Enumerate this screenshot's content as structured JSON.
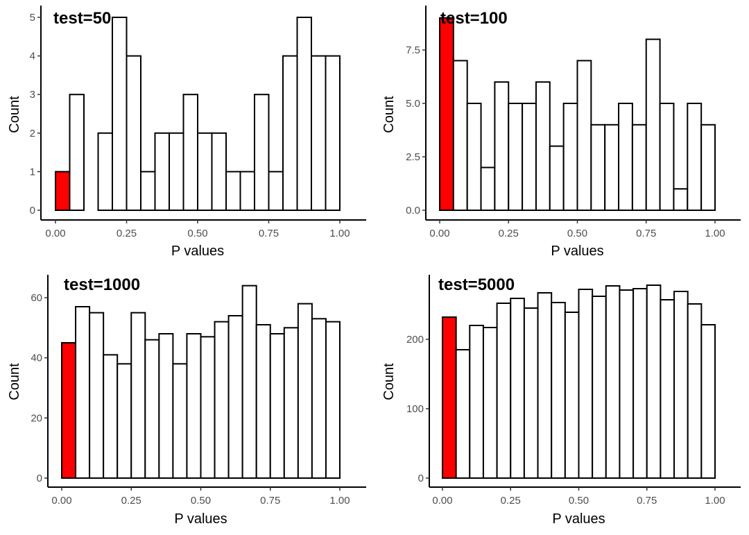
{
  "chart_data": [
    {
      "type": "bar",
      "title": "test=50",
      "xlabel": "P values",
      "ylabel": "Count",
      "bin_width": 0.05,
      "bin_edges_start": 0.0,
      "categories": [
        "0.00-0.05",
        "0.05-0.10",
        "0.10-0.15",
        "0.15-0.20",
        "0.20-0.25",
        "0.25-0.30",
        "0.30-0.35",
        "0.35-0.40",
        "0.40-0.45",
        "0.45-0.50",
        "0.50-0.55",
        "0.55-0.60",
        "0.60-0.65",
        "0.65-0.70",
        "0.70-0.75",
        "0.75-0.80",
        "0.80-0.85",
        "0.85-0.90",
        "0.90-0.95",
        "0.95-1.00"
      ],
      "values": [
        1,
        3,
        0,
        2,
        5,
        4,
        1,
        2,
        2,
        3,
        2,
        2,
        1,
        1,
        3,
        1,
        4,
        5,
        4,
        4
      ],
      "highlight_bins": [
        0
      ],
      "highlight_color": "#ff0000",
      "fill_color": "#ffffff",
      "xlim": [
        0,
        1
      ],
      "ylim": [
        0,
        5
      ],
      "xticks": [
        0,
        0.25,
        0.5,
        0.75,
        1.0
      ],
      "xtick_labels": [
        "0.00",
        "0.25",
        "0.50",
        "0.75",
        "1.00"
      ],
      "yticks": [
        0,
        1,
        2,
        3,
        4,
        5
      ],
      "ytick_labels": [
        "0",
        "1",
        "2",
        "3",
        "4",
        "5"
      ],
      "grid": false,
      "legend": "none"
    },
    {
      "type": "bar",
      "title": "test=100",
      "xlabel": "P values",
      "ylabel": "Count",
      "bin_width": 0.05,
      "bin_edges_start": 0.0,
      "categories": [
        "0.00-0.05",
        "0.05-0.10",
        "0.10-0.15",
        "0.15-0.20",
        "0.20-0.25",
        "0.25-0.30",
        "0.30-0.35",
        "0.35-0.40",
        "0.40-0.45",
        "0.45-0.50",
        "0.50-0.55",
        "0.55-0.60",
        "0.60-0.65",
        "0.65-0.70",
        "0.70-0.75",
        "0.75-0.80",
        "0.80-0.85",
        "0.85-0.90",
        "0.90-0.95",
        "0.95-1.00"
      ],
      "values": [
        9,
        7,
        5,
        2,
        6,
        5,
        5,
        6,
        3,
        5,
        7,
        4,
        4,
        5,
        4,
        8,
        5,
        1,
        5,
        4
      ],
      "highlight_bins": [
        0
      ],
      "highlight_color": "#ff0000",
      "fill_color": "#ffffff",
      "xlim": [
        0,
        1
      ],
      "ylim": [
        0,
        9
      ],
      "xticks": [
        0,
        0.25,
        0.5,
        0.75,
        1.0
      ],
      "xtick_labels": [
        "0.00",
        "0.25",
        "0.50",
        "0.75",
        "1.00"
      ],
      "yticks": [
        0,
        2.5,
        5,
        7.5
      ],
      "ytick_labels": [
        "0.0",
        "2.5",
        "5.0",
        "7.5"
      ],
      "grid": false,
      "legend": "none"
    },
    {
      "type": "bar",
      "title": "test=1000",
      "xlabel": "P values",
      "ylabel": "Count",
      "bin_width": 0.05,
      "bin_edges_start": 0.0,
      "categories": [
        "0.00-0.05",
        "0.05-0.10",
        "0.10-0.15",
        "0.15-0.20",
        "0.20-0.25",
        "0.25-0.30",
        "0.30-0.35",
        "0.35-0.40",
        "0.40-0.45",
        "0.45-0.50",
        "0.50-0.55",
        "0.55-0.60",
        "0.60-0.65",
        "0.65-0.70",
        "0.70-0.75",
        "0.75-0.80",
        "0.80-0.85",
        "0.85-0.90",
        "0.90-0.95",
        "0.95-1.00"
      ],
      "values": [
        45,
        57,
        55,
        41,
        38,
        55,
        46,
        48,
        38,
        48,
        47,
        52,
        54,
        64,
        51,
        48,
        50,
        58,
        53,
        52
      ],
      "highlight_bins": [
        0
      ],
      "highlight_color": "#ff0000",
      "fill_color": "#ffffff",
      "xlim": [
        0,
        1
      ],
      "ylim": [
        0,
        64
      ],
      "xticks": [
        0,
        0.25,
        0.5,
        0.75,
        1.0
      ],
      "xtick_labels": [
        "0.00",
        "0.25",
        "0.50",
        "0.75",
        "1.00"
      ],
      "yticks": [
        0,
        20,
        40,
        60
      ],
      "ytick_labels": [
        "0",
        "20",
        "40",
        "60"
      ],
      "grid": false,
      "legend": "none"
    },
    {
      "type": "bar",
      "title": "test=5000",
      "xlabel": "P values",
      "ylabel": "Count",
      "bin_width": 0.05,
      "bin_edges_start": 0.0,
      "categories": [
        "0.00-0.05",
        "0.05-0.10",
        "0.10-0.15",
        "0.15-0.20",
        "0.20-0.25",
        "0.25-0.30",
        "0.30-0.35",
        "0.35-0.40",
        "0.40-0.45",
        "0.45-0.50",
        "0.50-0.55",
        "0.55-0.60",
        "0.60-0.65",
        "0.65-0.70",
        "0.70-0.75",
        "0.75-0.80",
        "0.80-0.85",
        "0.85-0.90",
        "0.90-0.95",
        "0.95-1.00"
      ],
      "values": [
        232,
        185,
        220,
        217,
        252,
        259,
        245,
        267,
        253,
        239,
        272,
        262,
        277,
        271,
        273,
        278,
        257,
        269,
        251,
        221
      ],
      "highlight_bins": [
        0
      ],
      "highlight_color": "#ff0000",
      "fill_color": "#ffffff",
      "xlim": [
        0,
        1
      ],
      "ylim": [
        0,
        278
      ],
      "xticks": [
        0,
        0.25,
        0.5,
        0.75,
        1.0
      ],
      "xtick_labels": [
        "0.00",
        "0.25",
        "0.50",
        "0.75",
        "1.00"
      ],
      "yticks": [
        0,
        100,
        200
      ],
      "ytick_labels": [
        "0",
        "100",
        "200"
      ],
      "grid": false,
      "legend": "none"
    }
  ]
}
